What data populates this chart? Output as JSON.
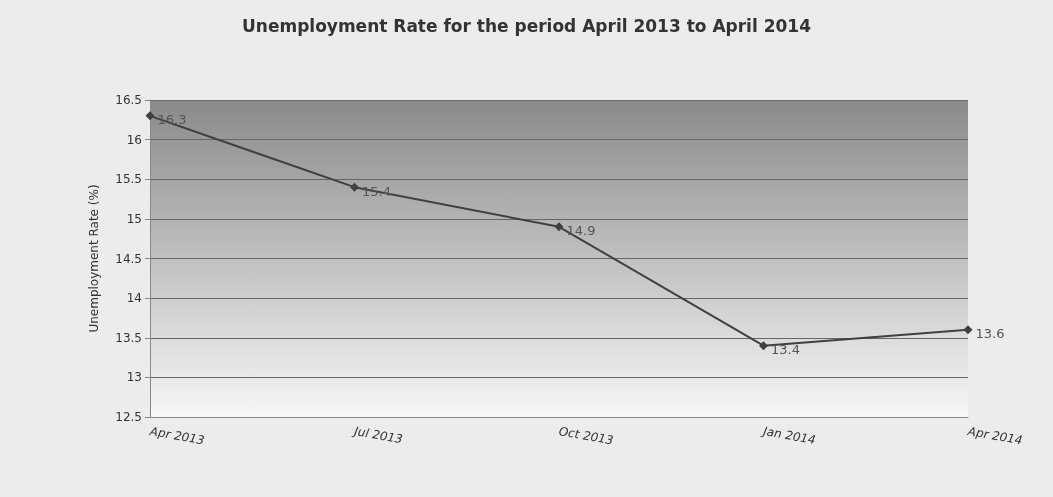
{
  "chart_data": {
    "type": "line",
    "title": "Unemployment Rate for the period April 2013 to April 2014",
    "ylabel": "Unemployment Rate (%)",
    "categories": [
      "Apr 2013",
      "Jul 2013",
      "Oct 2013",
      "Jan 2014",
      "Apr 2014"
    ],
    "series": [
      {
        "color": "#404040",
        "values": [
          16.3,
          15.4,
          14.9,
          13.4,
          13.6
        ]
      }
    ],
    "ylim": [
      12.5,
      16.5
    ],
    "yticks": [
      12.5,
      13,
      13.5,
      14,
      14.5,
      15,
      15.5,
      16,
      16.5
    ],
    "grid": "y",
    "marker": "diamond",
    "line_style": "solid",
    "data_labels": true
  }
}
